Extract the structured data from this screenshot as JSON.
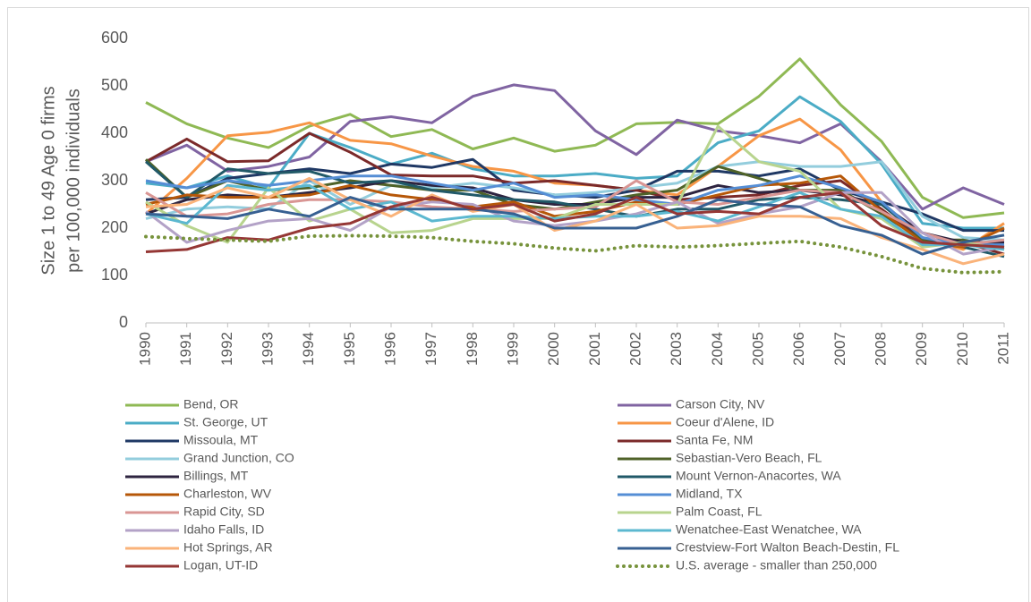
{
  "chart_data": {
    "type": "line",
    "ylabel_lines": [
      "Size 1 to 49 Age 0 firms",
      "per 100,000 individuals"
    ],
    "x": [
      1990,
      1991,
      1992,
      1993,
      1994,
      1995,
      1996,
      1997,
      1998,
      1999,
      2000,
      2001,
      2002,
      2003,
      2004,
      2005,
      2006,
      2007,
      2008,
      2009,
      2010,
      2011
    ],
    "xlim": [
      1990,
      2011
    ],
    "ylim": [
      0,
      600
    ],
    "yticks": [
      0,
      100,
      200,
      300,
      400,
      500,
      600
    ],
    "series": [
      {
        "name": "Bend, OR",
        "color": "#8fb954",
        "values": [
          465,
          420,
          390,
          370,
          415,
          440,
          393,
          408,
          367,
          390,
          362,
          375,
          420,
          423,
          420,
          478,
          557,
          460,
          383,
          265,
          222,
          232
        ]
      },
      {
        "name": "Carson City, NV",
        "color": "#8064a2",
        "values": [
          340,
          375,
          320,
          330,
          350,
          425,
          435,
          422,
          478,
          502,
          490,
          405,
          355,
          428,
          405,
          395,
          380,
          420,
          340,
          240,
          285,
          250
        ]
      },
      {
        "name": "St. George, UT",
        "color": "#4bacc6",
        "values": [
          295,
          285,
          310,
          285,
          400,
          370,
          335,
          358,
          325,
          310,
          310,
          315,
          305,
          310,
          380,
          405,
          477,
          425,
          335,
          210,
          200,
          200
        ]
      },
      {
        "name": "Coeur d'Alene, ID",
        "color": "#f79646",
        "values": [
          230,
          305,
          395,
          402,
          422,
          385,
          378,
          352,
          330,
          320,
          295,
          290,
          280,
          270,
          330,
          395,
          430,
          365,
          255,
          180,
          155,
          210
        ]
      },
      {
        "name": "Missoula, MT",
        "color": "#1f3864",
        "values": [
          260,
          265,
          305,
          315,
          325,
          315,
          335,
          328,
          345,
          280,
          270,
          265,
          280,
          320,
          320,
          310,
          325,
          280,
          255,
          230,
          195,
          195
        ]
      },
      {
        "name": "Santa Fe, NM",
        "color": "#7b2a2a",
        "values": [
          340,
          388,
          340,
          342,
          400,
          360,
          312,
          310,
          310,
          295,
          300,
          290,
          280,
          260,
          265,
          270,
          290,
          300,
          240,
          175,
          170,
          145
        ]
      },
      {
        "name": "Grand Junction, CO",
        "color": "#93cddd",
        "values": [
          220,
          240,
          245,
          240,
          300,
          250,
          290,
          285,
          295,
          285,
          270,
          275,
          285,
          295,
          330,
          340,
          330,
          330,
          340,
          225,
          180,
          175
        ]
      },
      {
        "name": "Sebastian-Vero Beach, FL",
        "color": "#4f6228",
        "values": [
          345,
          265,
          300,
          280,
          285,
          300,
          290,
          280,
          280,
          250,
          240,
          255,
          270,
          280,
          330,
          305,
          280,
          280,
          230,
          175,
          175,
          160
        ]
      },
      {
        "name": "Billings, MT",
        "color": "#2e2440",
        "values": [
          230,
          260,
          270,
          265,
          275,
          285,
          300,
          290,
          285,
          260,
          250,
          250,
          265,
          265,
          290,
          275,
          280,
          270,
          250,
          190,
          170,
          170
        ]
      },
      {
        "name": "Mount Vernon-Anacortes, WA",
        "color": "#215968",
        "values": [
          340,
          265,
          325,
          315,
          320,
          295,
          300,
          280,
          270,
          260,
          255,
          240,
          225,
          240,
          240,
          260,
          265,
          260,
          250,
          180,
          160,
          140
        ]
      },
      {
        "name": "Charleston, WV",
        "color": "#b65708",
        "values": [
          250,
          270,
          265,
          265,
          270,
          290,
          270,
          260,
          245,
          255,
          225,
          235,
          255,
          250,
          270,
          290,
          295,
          310,
          235,
          170,
          160,
          200
        ]
      },
      {
        "name": "Midland, TX",
        "color": "#558ed5",
        "values": [
          300,
          285,
          300,
          290,
          300,
          310,
          310,
          295,
          280,
          295,
          265,
          270,
          260,
          250,
          280,
          290,
          310,
          285,
          255,
          180,
          165,
          165
        ]
      },
      {
        "name": "Rapid City, SD",
        "color": "#d99694",
        "values": [
          275,
          225,
          230,
          250,
          260,
          260,
          255,
          245,
          240,
          235,
          240,
          245,
          300,
          255,
          250,
          265,
          280,
          275,
          235,
          190,
          165,
          175
        ]
      },
      {
        "name": "Palm Coast, FL",
        "color": "#b8d48e",
        "values": [
          255,
          205,
          170,
          285,
          215,
          240,
          190,
          195,
          220,
          220,
          220,
          250,
          250,
          250,
          415,
          340,
          320,
          240,
          220,
          160,
          170,
          155
        ]
      },
      {
        "name": "Idaho Falls, ID",
        "color": "#b3a2c7",
        "values": [
          235,
          170,
          195,
          215,
          220,
          195,
          245,
          255,
          250,
          215,
          205,
          215,
          230,
          255,
          210,
          230,
          245,
          275,
          275,
          190,
          145,
          160
        ]
      },
      {
        "name": "Wenatchee-East Wenatchee, WA",
        "color": "#5cb8d0",
        "values": [
          230,
          210,
          290,
          280,
          290,
          240,
          255,
          215,
          225,
          225,
          220,
          225,
          225,
          235,
          215,
          245,
          275,
          240,
          225,
          165,
          165,
          155
        ]
      },
      {
        "name": "Hot Springs, AR",
        "color": "#fab37a",
        "values": [
          245,
          250,
          285,
          265,
          305,
          260,
          225,
          270,
          235,
          250,
          195,
          215,
          250,
          200,
          205,
          225,
          225,
          220,
          180,
          155,
          125,
          145
        ]
      },
      {
        "name": "Crestview-Fort Walton Beach-Destin, FL",
        "color": "#376092",
        "values": [
          230,
          225,
          220,
          240,
          225,
          265,
          240,
          240,
          240,
          230,
          200,
          200,
          200,
          225,
          260,
          250,
          245,
          205,
          185,
          145,
          170,
          185
        ]
      },
      {
        "name": "Logan, UT-ID",
        "color": "#953735",
        "values": [
          150,
          155,
          180,
          175,
          200,
          210,
          245,
          265,
          240,
          250,
          215,
          230,
          265,
          230,
          235,
          230,
          265,
          275,
          205,
          170,
          165,
          160
        ]
      },
      {
        "name": "U.S. average - smaller than 250,000",
        "color": "#77933c",
        "dotted": true,
        "values": [
          182,
          178,
          175,
          172,
          183,
          184,
          183,
          180,
          172,
          167,
          158,
          152,
          163,
          160,
          163,
          168,
          172,
          160,
          140,
          115,
          106,
          108
        ]
      }
    ]
  }
}
